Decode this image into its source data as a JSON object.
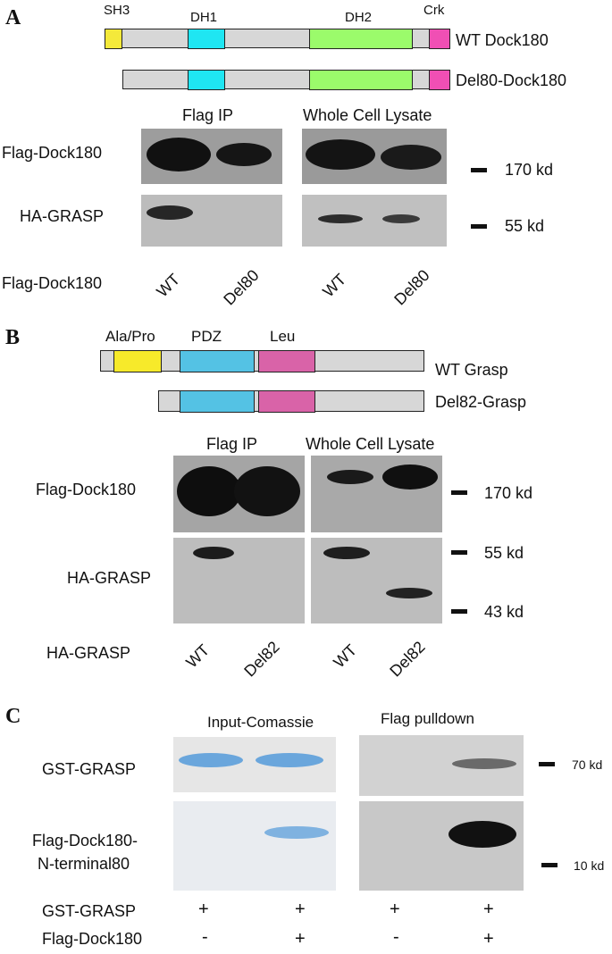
{
  "colors": {
    "SH3": "#f4e93a",
    "DH1": "#1fe6f2",
    "DH2": "#9bfb6b",
    "Crk": "#f04fb4",
    "bar_gray": "#d7d7d7",
    "AlaPro": "#f7ea2a",
    "PDZ": "#54c2e4",
    "Leu": "#d963a8",
    "coomassie_blue": "#6aa6dc"
  },
  "panelA": {
    "letter": "A",
    "domains": {
      "sh3": "SH3",
      "dh1": "DH1",
      "dh2": "DH2",
      "crk": "Crk"
    },
    "construct_wt": "WT Dock180",
    "construct_del": "Del80-Dock180",
    "header_ip": "Flag IP",
    "header_wcl": "Whole Cell Lysate",
    "row1_label": "Flag-Dock180",
    "row2_label": "HA-GRASP",
    "marker1": "170 kd",
    "marker2": "55 kd",
    "lane_row_label": "Flag-Dock180",
    "lanes": [
      "WT",
      "Del80",
      "WT",
      "Del80"
    ]
  },
  "panelB": {
    "letter": "B",
    "domains": {
      "alapro": "Ala/Pro",
      "pdz": "PDZ",
      "leu": "Leu"
    },
    "construct_wt": "WT Grasp",
    "construct_del": "Del82-Grasp",
    "header_ip": "Flag IP",
    "header_wcl": "Whole Cell Lysate",
    "row1_label": "Flag-Dock180",
    "row2_label": "HA-GRASP",
    "marker1": "170 kd",
    "marker2": "55 kd",
    "marker3": "43  kd",
    "lane_row_label": "HA-GRASP",
    "lanes": [
      "WT",
      "Del82",
      "WT",
      "Del82"
    ]
  },
  "panelC": {
    "letter": "C",
    "header_input": "Input-Comassie",
    "header_pulldown": "Flag pulldown",
    "row1_label": "GST-GRASP",
    "row2_label_line1": "Flag-Dock180-",
    "row2_label_line2": "N-terminal80",
    "marker1": "70 kd",
    "marker2": "10 kd",
    "bottom_row1_label": "GST-GRASP",
    "bottom_row1_values": [
      "+",
      "+",
      "+",
      "+"
    ],
    "bottom_row2_label": "Flag-Dock180",
    "bottom_row2_values": [
      "-",
      "+",
      "-",
      "+"
    ]
  }
}
